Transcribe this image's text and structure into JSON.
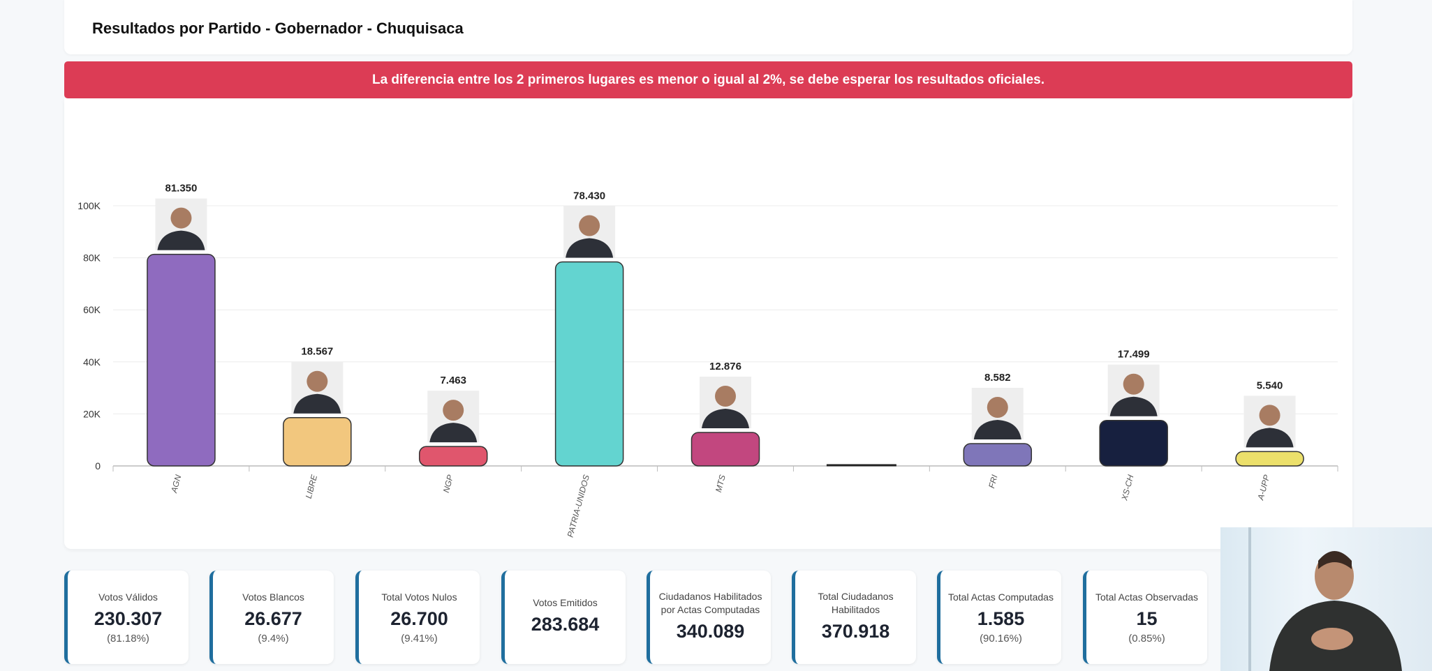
{
  "header": {
    "title": "Resultados por Partido - Gobernador - Chuquisaca"
  },
  "alert": {
    "text": "La diferencia entre los 2 primeros lugares es menor o igual al 2%, se debe esperar los resultados oficiales.",
    "color": "#dc3c55"
  },
  "chart_data": {
    "type": "bar",
    "categories": [
      "AGN",
      "LIBRE",
      "NGP",
      "PATRIA-UNIDOS",
      "MTS",
      "",
      "FRI",
      "XS-CH",
      "A-UPP"
    ],
    "values": [
      81350,
      18567,
      7463,
      78430,
      12876,
      0,
      8582,
      17499,
      5540
    ],
    "data_labels": [
      "81.350",
      "18.567",
      "7.463",
      "78.430",
      "12.876",
      "",
      "8.582",
      "17.499",
      "5.540"
    ],
    "colors": [
      "#8f6bbf",
      "#f2c77e",
      "#e0566d",
      "#63d4d0",
      "#c2477f",
      "#222222",
      "#7f76b9",
      "#17203f",
      "#ece06b"
    ],
    "yticks": [
      "0",
      "20K",
      "40K",
      "60K",
      "80K",
      "100K"
    ],
    "ylim": [
      0,
      100000
    ],
    "grid": true,
    "legend": "none"
  },
  "stats": [
    {
      "label": "Votos Válidos",
      "value": "230.307",
      "pct": "(81.18%)"
    },
    {
      "label": "Votos Blancos",
      "value": "26.677",
      "pct": "(9.4%)"
    },
    {
      "label": "Total Votos Nulos",
      "value": "26.700",
      "pct": "(9.41%)"
    },
    {
      "label": "Votos Emitidos",
      "value": "283.684"
    },
    {
      "label": "Ciudadanos Habilitados por Actas Computadas",
      "value": "340.089"
    },
    {
      "label": "Total Ciudadanos Habilitados",
      "value": "370.918"
    },
    {
      "label": "Total Actas Computadas",
      "value": "1.585",
      "pct": "(90.16%)"
    },
    {
      "label": "Total Actas Observadas",
      "value": "15",
      "pct": "(0.85%)"
    }
  ]
}
